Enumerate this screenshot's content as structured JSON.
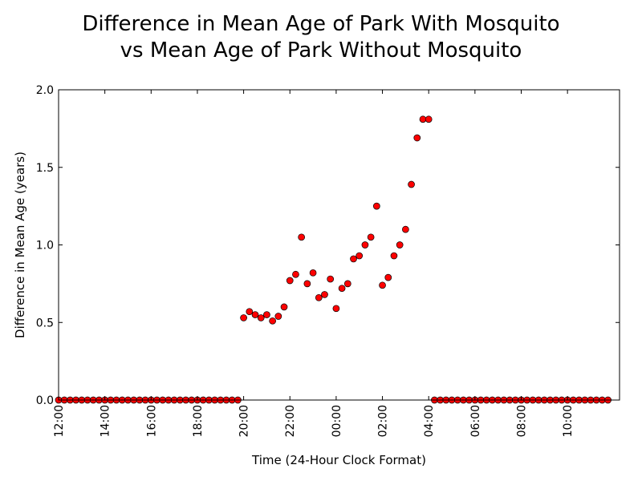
{
  "chart_data": {
    "type": "scatter",
    "title_line1": "Difference in Mean Age of Park With Mosquito",
    "title_line2": "vs Mean Age of Park Without Mosquito",
    "xlabel": "Time (24-Hour Clock Format)",
    "ylabel": "Difference in Mean Age (years)",
    "x_unit": "hours since 12:00",
    "xlim": [
      0,
      24.25
    ],
    "ylim": [
      0,
      2.0
    ],
    "yticks": [
      {
        "value": 0.0,
        "label": "0.0"
      },
      {
        "value": 0.5,
        "label": "0.5"
      },
      {
        "value": 1.0,
        "label": "1.0"
      },
      {
        "value": 1.5,
        "label": "1.5"
      },
      {
        "value": 2.0,
        "label": "2.0"
      }
    ],
    "xticks": [
      {
        "value": 0,
        "label": "12:00"
      },
      {
        "value": 2,
        "label": "14:00"
      },
      {
        "value": 4,
        "label": "16:00"
      },
      {
        "value": 6,
        "label": "18:00"
      },
      {
        "value": 8,
        "label": "20:00"
      },
      {
        "value": 10,
        "label": "22:00"
      },
      {
        "value": 12,
        "label": "00:00"
      },
      {
        "value": 14,
        "label": "02:00"
      },
      {
        "value": 16,
        "label": "04:00"
      },
      {
        "value": 18,
        "label": "06:00"
      },
      {
        "value": 20,
        "label": "08:00"
      },
      {
        "value": 22,
        "label": "10:00"
      }
    ],
    "grid": false,
    "legend": "none",
    "marker_color": "#ff0000",
    "marker_edge": "#000000",
    "points": [
      [
        0.0,
        0
      ],
      [
        0.25,
        0
      ],
      [
        0.5,
        0
      ],
      [
        0.75,
        0
      ],
      [
        1.0,
        0
      ],
      [
        1.25,
        0
      ],
      [
        1.5,
        0
      ],
      [
        1.75,
        0
      ],
      [
        2.0,
        0
      ],
      [
        2.25,
        0
      ],
      [
        2.5,
        0
      ],
      [
        2.75,
        0
      ],
      [
        3.0,
        0
      ],
      [
        3.25,
        0
      ],
      [
        3.5,
        0
      ],
      [
        3.75,
        0
      ],
      [
        4.0,
        0
      ],
      [
        4.25,
        0
      ],
      [
        4.5,
        0
      ],
      [
        4.75,
        0
      ],
      [
        5.0,
        0
      ],
      [
        5.25,
        0
      ],
      [
        5.5,
        0
      ],
      [
        5.75,
        0
      ],
      [
        6.0,
        0
      ],
      [
        6.25,
        0
      ],
      [
        6.5,
        0
      ],
      [
        6.75,
        0
      ],
      [
        7.0,
        0
      ],
      [
        7.25,
        0
      ],
      [
        7.5,
        0
      ],
      [
        7.75,
        0
      ],
      [
        8.0,
        0.53
      ],
      [
        8.25,
        0.57
      ],
      [
        8.5,
        0.55
      ],
      [
        8.75,
        0.53
      ],
      [
        9.0,
        0.55
      ],
      [
        9.25,
        0.51
      ],
      [
        9.5,
        0.54
      ],
      [
        9.75,
        0.6
      ],
      [
        10.0,
        0.77
      ],
      [
        10.25,
        0.81
      ],
      [
        10.5,
        1.05
      ],
      [
        10.75,
        0.75
      ],
      [
        11.0,
        0.82
      ],
      [
        11.25,
        0.66
      ],
      [
        11.5,
        0.68
      ],
      [
        11.75,
        0.78
      ],
      [
        12.0,
        0.59
      ],
      [
        12.25,
        0.72
      ],
      [
        12.5,
        0.75
      ],
      [
        12.75,
        0.91
      ],
      [
        13.0,
        0.93
      ],
      [
        13.25,
        1.0
      ],
      [
        13.5,
        1.05
      ],
      [
        13.75,
        1.25
      ],
      [
        14.0,
        0.74
      ],
      [
        14.25,
        0.79
      ],
      [
        14.5,
        0.93
      ],
      [
        14.75,
        1.0
      ],
      [
        15.0,
        1.1
      ],
      [
        15.25,
        1.39
      ],
      [
        15.5,
        1.69
      ],
      [
        15.75,
        1.81
      ],
      [
        16.0,
        1.81
      ],
      [
        16.25,
        0
      ],
      [
        16.5,
        0
      ],
      [
        16.75,
        0
      ],
      [
        17.0,
        0
      ],
      [
        17.25,
        0
      ],
      [
        17.5,
        0
      ],
      [
        17.75,
        0
      ],
      [
        18.0,
        0
      ],
      [
        18.25,
        0
      ],
      [
        18.5,
        0
      ],
      [
        18.75,
        0
      ],
      [
        19.0,
        0
      ],
      [
        19.25,
        0
      ],
      [
        19.5,
        0
      ],
      [
        19.75,
        0
      ],
      [
        20.0,
        0
      ],
      [
        20.25,
        0
      ],
      [
        20.5,
        0
      ],
      [
        20.75,
        0
      ],
      [
        21.0,
        0
      ],
      [
        21.25,
        0
      ],
      [
        21.5,
        0
      ],
      [
        21.75,
        0
      ],
      [
        22.0,
        0
      ],
      [
        22.25,
        0
      ],
      [
        22.5,
        0
      ],
      [
        22.75,
        0
      ],
      [
        23.0,
        0
      ],
      [
        23.25,
        0
      ],
      [
        23.5,
        0
      ],
      [
        23.75,
        0
      ]
    ]
  }
}
